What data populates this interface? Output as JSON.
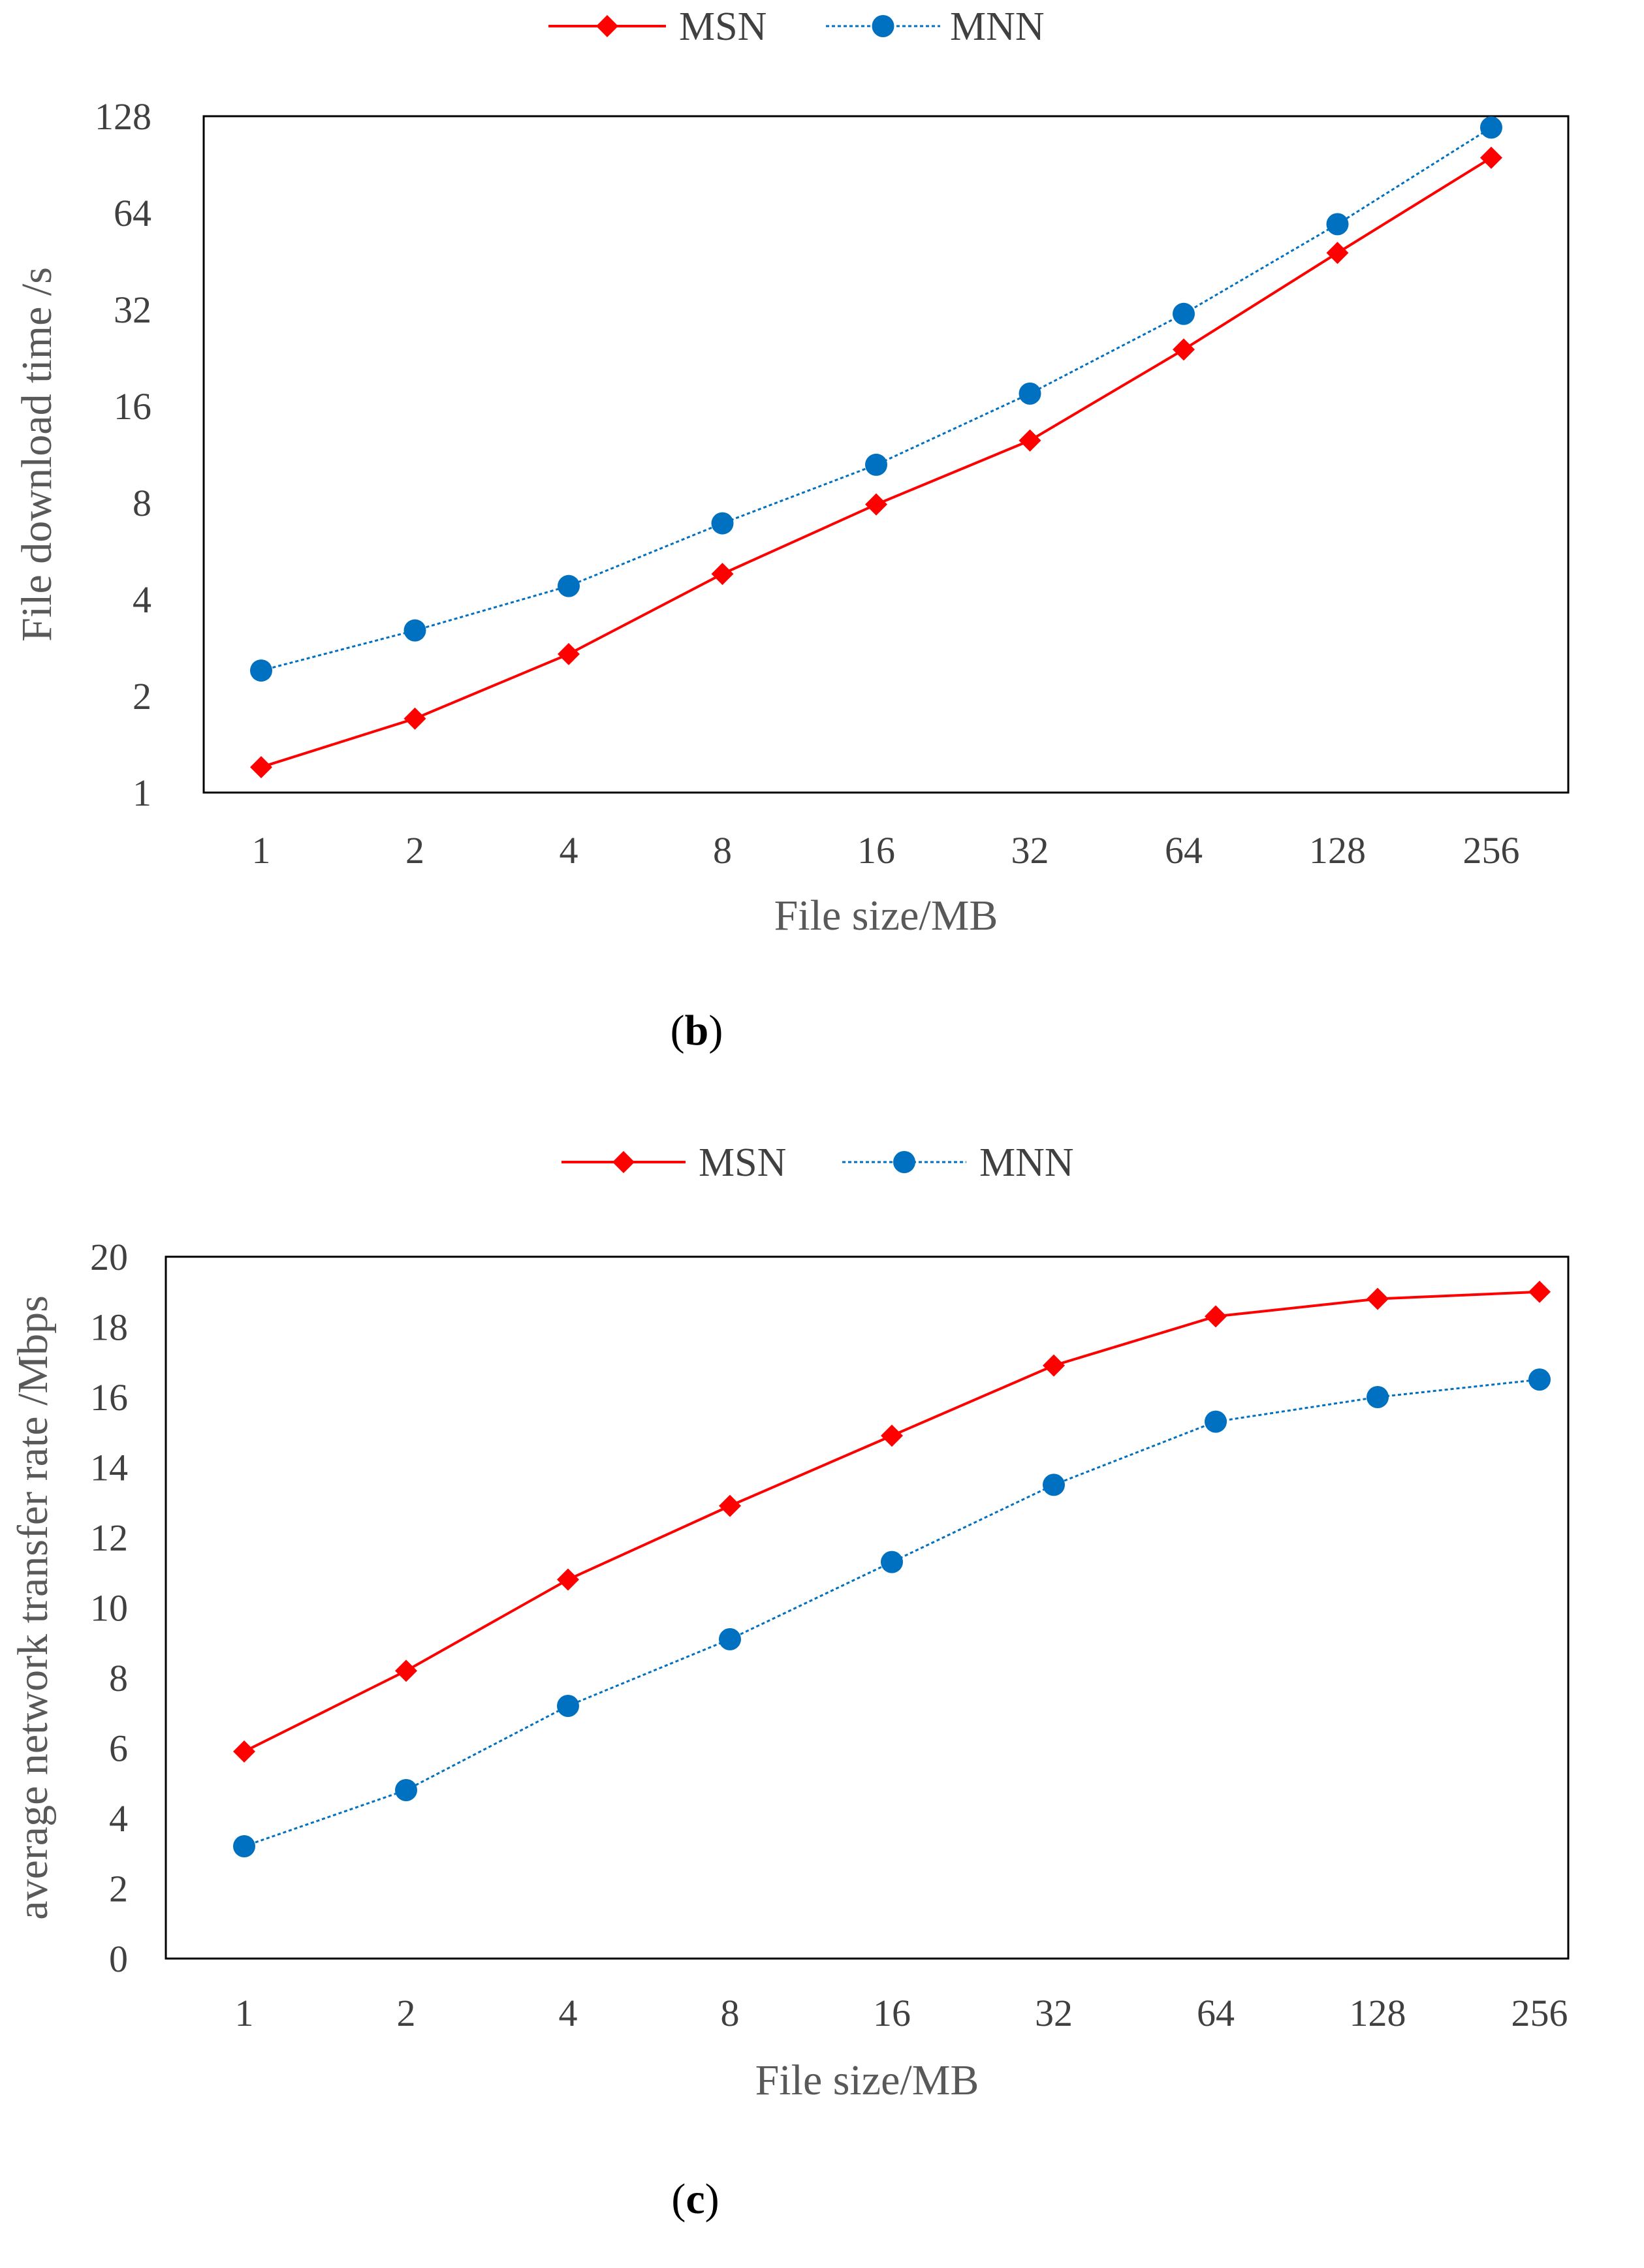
{
  "colors": {
    "msn": "#FF0000",
    "mnn": "#0070C0",
    "axis": "#000000",
    "text": "#404040"
  },
  "chart_data": [
    {
      "type": "line",
      "panel": "b",
      "caption": {
        "open": "(",
        "letter": "b",
        "close": ")"
      },
      "legend_position": "top-center",
      "xlabel": "File size/MB",
      "ylabel": "File download time /s",
      "y_scale": "log2",
      "ylim": [
        1,
        128
      ],
      "y_ticks": [
        "1",
        "2",
        "4",
        "8",
        "16",
        "32",
        "64",
        "128"
      ],
      "categories": [
        "1",
        "2",
        "4",
        "8",
        "16",
        "32",
        "64",
        "128",
        "256"
      ],
      "series": [
        {
          "name": "MSN",
          "marker": "diamond",
          "line": "solid",
          "values": [
            1.2,
            1.7,
            2.7,
            4.8,
            7.9,
            12.5,
            24,
            48,
            95
          ]
        },
        {
          "name": "MNN",
          "marker": "circle",
          "line": "dotted",
          "values": [
            2.4,
            3.2,
            4.4,
            6.9,
            10.5,
            17.5,
            31,
            59,
            118
          ]
        }
      ]
    },
    {
      "type": "line",
      "panel": "c",
      "caption": {
        "open": "(",
        "letter": "c",
        "close": ")"
      },
      "legend_position": "top-center",
      "xlabel": "File size/MB",
      "ylabel": "average network transfer rate /Mbps",
      "y_scale": "linear",
      "ylim": [
        0,
        20
      ],
      "y_ticks": [
        "0",
        "2",
        "4",
        "6",
        "8",
        "10",
        "12",
        "14",
        "16",
        "18",
        "20"
      ],
      "categories": [
        "1",
        "2",
        "4",
        "8",
        "16",
        "32",
        "64",
        "128",
        "256"
      ],
      "series": [
        {
          "name": "MSN",
          "marker": "diamond",
          "line": "solid",
          "values": [
            5.9,
            8.2,
            10.8,
            12.9,
            14.9,
            16.9,
            18.3,
            18.8,
            19.0
          ]
        },
        {
          "name": "MNN",
          "marker": "circle",
          "line": "dotted",
          "values": [
            3.2,
            4.8,
            7.2,
            9.1,
            11.3,
            13.5,
            15.3,
            16.0,
            16.5
          ]
        }
      ]
    }
  ]
}
